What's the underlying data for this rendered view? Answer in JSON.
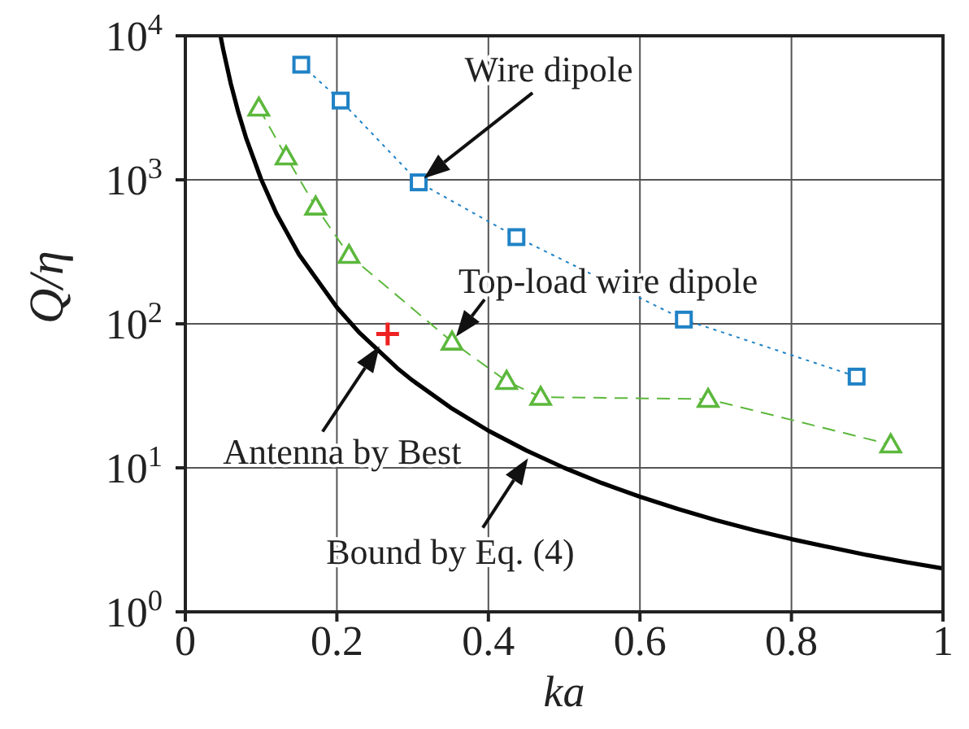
{
  "chart_data": {
    "type": "line",
    "xlabel": "ka",
    "ylabel": "Q/η",
    "log": "y",
    "grid": true,
    "legend": false,
    "xlim": [
      0,
      1
    ],
    "xticks": [
      0,
      0.2,
      0.4,
      0.6,
      0.8,
      1
    ],
    "ylim": [
      1,
      10000
    ],
    "yticks": [
      {
        "value": 1,
        "label": "10$^{0}$"
      },
      {
        "value": 10,
        "label": "10$^{1}$"
      },
      {
        "value": 100,
        "label": "10$^{2}$"
      },
      {
        "value": 1000,
        "label": "10$^{3}$"
      },
      {
        "value": 10000,
        "label": "10$^{4}$"
      }
    ],
    "series": [
      {
        "color": "#1f82c6",
        "marker": "square",
        "line_style": "dotted",
        "x": [
          0.153,
          0.205,
          0.308,
          0.437,
          0.658,
          0.886
        ],
        "values": [
          6300,
          3550,
          960,
          400,
          107,
          43
        ]
      },
      {
        "color": "#5cb83c",
        "marker": "triangle",
        "line_style": "dashed",
        "x": [
          0.097,
          0.133,
          0.172,
          0.216,
          0.352,
          0.424,
          0.469,
          0.69,
          0.931
        ],
        "values": [
          3160,
          1450,
          650,
          300,
          75,
          40,
          31,
          30,
          14.5
        ]
      },
      {
        "color": "#000000",
        "marker": "none",
        "line_style": "solid",
        "x": [
          0.0464,
          0.05,
          0.06,
          0.07,
          0.08,
          0.1,
          0.12,
          0.15,
          0.2,
          0.23,
          0.28,
          0.3,
          0.35,
          0.4,
          0.45,
          0.5,
          0.55,
          0.6,
          0.65,
          0.7,
          0.75,
          0.8,
          0.85,
          0.9,
          0.95,
          1
        ],
        "values": [
          10000,
          8020,
          4646,
          2930,
          1966,
          1010,
          587,
          303,
          130,
          86.5,
          49.1,
          40.4,
          26.2,
          18.1,
          13.2,
          10,
          7.83,
          6.3,
          5.18,
          4.34,
          3.7,
          3.2,
          2.81,
          2.48,
          2.22,
          2
        ]
      },
      {
        "type": "scatter",
        "color": "#ee2222",
        "marker": "cross",
        "x": [
          0.267
        ],
        "values": [
          85
        ]
      }
    ],
    "annotations": [
      {
        "text": "Wire dipole",
        "x": 0.308,
        "y": 960
      },
      {
        "text": "Top-load wire dipole",
        "x": 0.352,
        "y": 75
      },
      {
        "text": "Antenna by Best",
        "x": 0.267,
        "y": 85
      },
      {
        "text": "Bound by Eq. (4)",
        "x": 0.457,
        "y": 12.7
      }
    ]
  }
}
